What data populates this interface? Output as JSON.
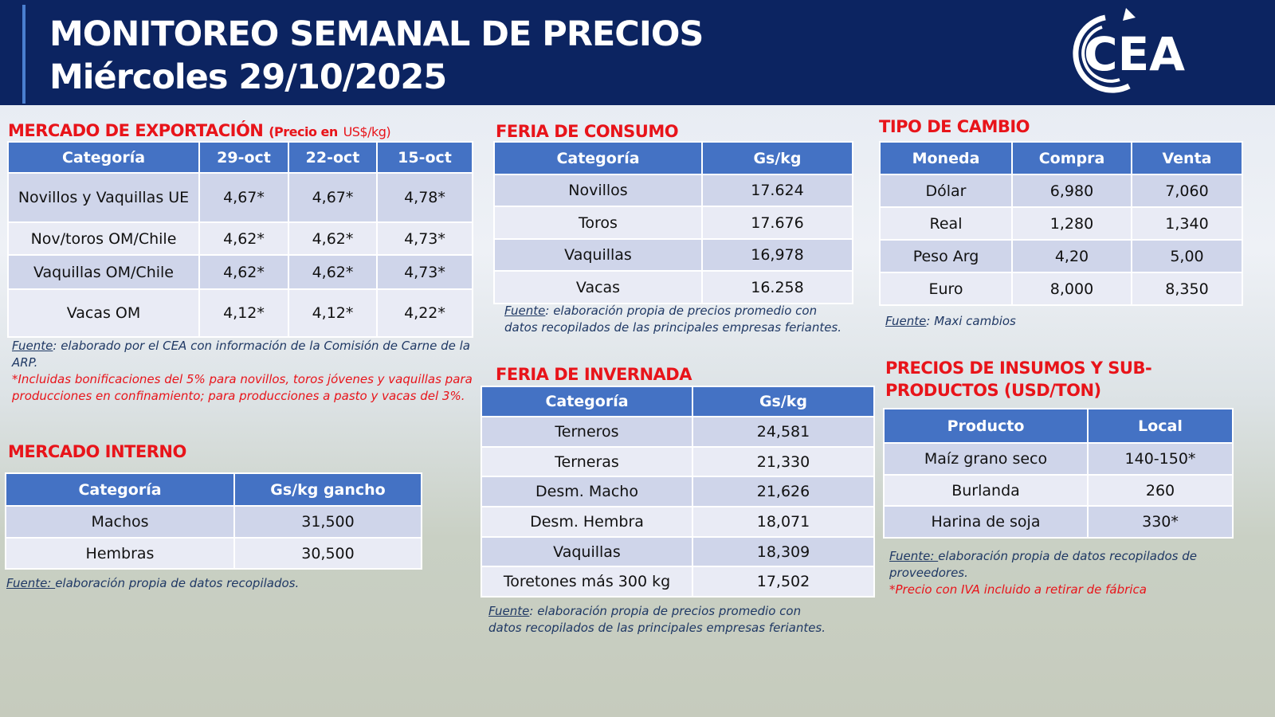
{
  "header": {
    "title_line1": "MONITOREO SEMANAL DE PRECIOS",
    "title_line2": "Miércoles 29/10/2025",
    "logo_text": "CEA"
  },
  "colors": {
    "navy": "#0c2461",
    "table_header": "#4472c4",
    "section_title": "#e8141a"
  },
  "export": {
    "title": "MERCADO DE EXPORTACIÓN",
    "subtitle_bold": "(Precio en",
    "subtitle_unit": "US$/kg)",
    "headers": [
      "Categoría",
      "29-oct",
      "22-oct",
      "15-oct"
    ],
    "rows": [
      [
        "Novillos y Vaquillas UE",
        "4,67*",
        "4,67*",
        "4,78*"
      ],
      [
        "Nov/toros OM/Chile",
        "4,62*",
        "4,62*",
        "4,73*"
      ],
      [
        "Vaquillas OM/Chile",
        "4,62*",
        "4,62*",
        "4,73*"
      ],
      [
        "Vacas OM",
        "4,12*",
        "4,12*",
        "4,22*"
      ]
    ],
    "source_label": "Fuente",
    "source_text": ": elaborado por el CEA con información de la Comisión de Carne de la ARP.",
    "footnote": "*Incluidas bonificaciones del 5% para novillos, toros jóvenes y vaquillas para producciones en confinamiento; para producciones a pasto y vacas del 3%."
  },
  "internal": {
    "title": "MERCADO INTERNO",
    "headers": [
      "Categoría",
      "Gs/kg gancho"
    ],
    "rows": [
      [
        "Machos",
        "31,500"
      ],
      [
        "Hembras",
        "30,500"
      ]
    ],
    "source_label": "Fuente: ",
    "source_text": "elaboración propia de datos recopilados."
  },
  "consumo": {
    "title": "FERIA DE CONSUMO",
    "headers": [
      "Categoría",
      "Gs/kg"
    ],
    "rows": [
      [
        "Novillos",
        "17.624"
      ],
      [
        "Toros",
        "17.676"
      ],
      [
        "Vaquillas",
        "16,978"
      ],
      [
        "Vacas",
        "16.258"
      ]
    ],
    "source_label": "Fuente",
    "source_text": ": elaboración propia de precios promedio con datos recopilados de las principales empresas feriantes."
  },
  "invernada": {
    "title": "FERIA DE INVERNADA",
    "headers": [
      "Categoría",
      "Gs/kg"
    ],
    "rows": [
      [
        "Terneros",
        "24,581"
      ],
      [
        "Terneras",
        "21,330"
      ],
      [
        "Desm. Macho",
        "21,626"
      ],
      [
        "Desm. Hembra",
        "18,071"
      ],
      [
        "Vaquillas",
        "18,309"
      ],
      [
        "Toretones más 300 kg",
        "17,502"
      ]
    ],
    "source_label": "Fuente",
    "source_text": ": elaboración propia de precios promedio con datos recopilados de las principales empresas feriantes."
  },
  "cambio": {
    "title": "TIPO DE CAMBIO",
    "headers": [
      "Moneda",
      "Compra",
      "Venta"
    ],
    "rows": [
      [
        "Dólar",
        "6,980",
        "7,060"
      ],
      [
        "Real",
        "1,280",
        "1,340"
      ],
      [
        "Peso Arg",
        "4,20",
        "5,00"
      ],
      [
        "Euro",
        "8,000",
        "8,350"
      ]
    ],
    "source_label": "Fuente",
    "source_text": ": Maxi cambios"
  },
  "insumos": {
    "title": "PRECIOS DE INSUMOS Y SUB-PRODUCTOS (USD/TON)",
    "headers": [
      "Producto",
      "Local"
    ],
    "rows": [
      [
        "Maíz grano seco",
        "140-150*"
      ],
      [
        "Burlanda",
        "260"
      ],
      [
        "Harina de soja",
        "330*"
      ]
    ],
    "source_label": "Fuente: ",
    "source_text": "elaboración propia de datos recopilados de proveedores.",
    "footnote": "*Precio con IVA incluido a retirar de fábrica"
  }
}
